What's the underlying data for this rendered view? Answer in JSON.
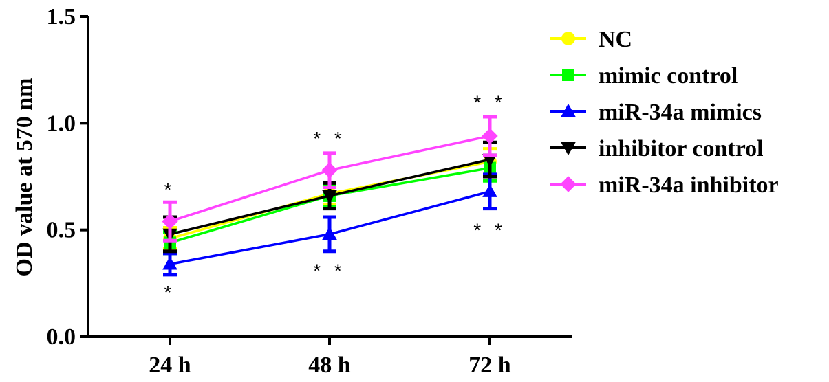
{
  "chart_data": {
    "type": "line",
    "categories": [
      "24 h",
      "48 h",
      "72 h"
    ],
    "ylabel": "OD value at 570 nm",
    "xlabel": "",
    "ylim": [
      0.0,
      1.5
    ],
    "yticks": [
      "0.0",
      "0.5",
      "1.0",
      "1.5"
    ],
    "ytick_values": [
      0.0,
      0.5,
      1.0,
      1.5
    ],
    "legend_position": "right",
    "series": [
      {
        "name": "NC",
        "color": "#FFFF00",
        "marker": "circle",
        "values": [
          0.46,
          0.67,
          0.82
        ],
        "errors": [
          0.05,
          0.05,
          0.06
        ]
      },
      {
        "name": "mimic control",
        "color": "#00FF00",
        "marker": "square",
        "values": [
          0.44,
          0.66,
          0.79
        ],
        "errors": [
          0.05,
          0.05,
          0.06
        ]
      },
      {
        "name": "miR-34a mimics",
        "color": "#0000FF",
        "marker": "triangle-up",
        "values": [
          0.34,
          0.48,
          0.68
        ],
        "errors": [
          0.05,
          0.08,
          0.08
        ]
      },
      {
        "name": "inhibitor control",
        "color": "#000000",
        "marker": "triangle-down",
        "values": [
          0.48,
          0.66,
          0.83
        ],
        "errors": [
          0.08,
          0.06,
          0.08
        ]
      },
      {
        "name": "miR-34a inhibitor",
        "color": "#FF44FF",
        "marker": "diamond",
        "values": [
          0.54,
          0.78,
          0.94
        ],
        "errors": [
          0.09,
          0.08,
          0.09
        ]
      }
    ],
    "annotations": [
      {
        "text": "*",
        "category": "24 h",
        "y": 0.69
      },
      {
        "text": "*",
        "category": "24 h",
        "y": 0.21
      },
      {
        "text": "* *",
        "category": "48 h",
        "y": 0.93
      },
      {
        "text": "* *",
        "category": "48 h",
        "y": 0.31
      },
      {
        "text": "* *",
        "category": "72 h",
        "y": 1.1
      },
      {
        "text": "* *",
        "category": "72 h",
        "y": 0.5
      }
    ]
  }
}
